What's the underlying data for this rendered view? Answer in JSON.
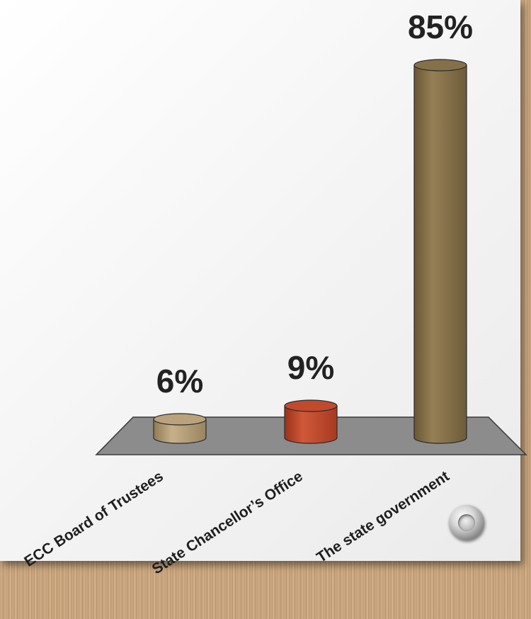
{
  "chart_data": {
    "type": "bar",
    "style": "3d-cylinder",
    "categories": [
      "ECC Board of Trustees",
      "State Chancellor’s Office",
      "The state government"
    ],
    "values": [
      6,
      9,
      85
    ],
    "data_labels": [
      "6%",
      "9%",
      "85%"
    ],
    "value_unit": "%",
    "ylim": [
      0,
      85
    ],
    "grid": false,
    "legend": "none",
    "colors": [
      "#b9a27c",
      "#c24a2c",
      "#857149"
    ],
    "floor_color": "#8c8c8c",
    "title": "",
    "xlabel": "",
    "ylabel": ""
  }
}
